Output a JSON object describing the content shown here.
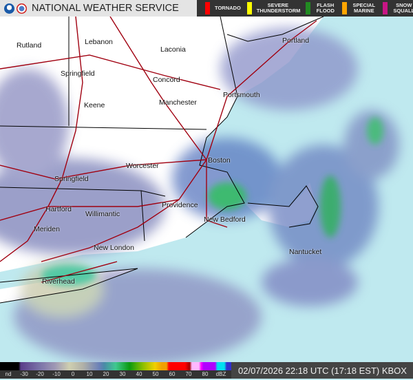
{
  "header": {
    "title": "NATIONAL WEATHER SERVICE",
    "logos": [
      "noaa-logo",
      "nws-logo"
    ]
  },
  "warning_legend": [
    {
      "label": "TORNADO",
      "color": "#ff0000"
    },
    {
      "label": "SEVERE THUNDERSTORM",
      "color": "#ffff00"
    },
    {
      "label": "FLASH FLOOD",
      "color": "#228b22"
    },
    {
      "label": "SPECIAL MARINE",
      "color": "#ffa500"
    },
    {
      "label": "SNOW SQUALL",
      "color": "#c71585"
    }
  ],
  "cities": [
    "Rutland",
    "Lebanon",
    "Laconia",
    "Springfield",
    "Concord",
    "Keene",
    "Manchester",
    "Portsmouth",
    "Portland",
    "Worcester",
    "Boston",
    "Springfield",
    "Hartford",
    "Providence",
    "Willimantic",
    "New Bedford",
    "Meriden",
    "New London",
    "Nantucket",
    "Riverhead"
  ],
  "colorbar": {
    "labels": [
      "nd",
      "-30",
      "-20",
      "-10",
      "0",
      "10",
      "20",
      "30",
      "40",
      "50",
      "60",
      "70",
      "80",
      "dBZ"
    ]
  },
  "timestamp": "02/07/2026 22:18 UTC (17:18 EST) KBOX",
  "colors": {
    "ocean": "#bfe9ef",
    "land": "#ffffff",
    "roads": "#a00010",
    "borders": "#000000"
  }
}
